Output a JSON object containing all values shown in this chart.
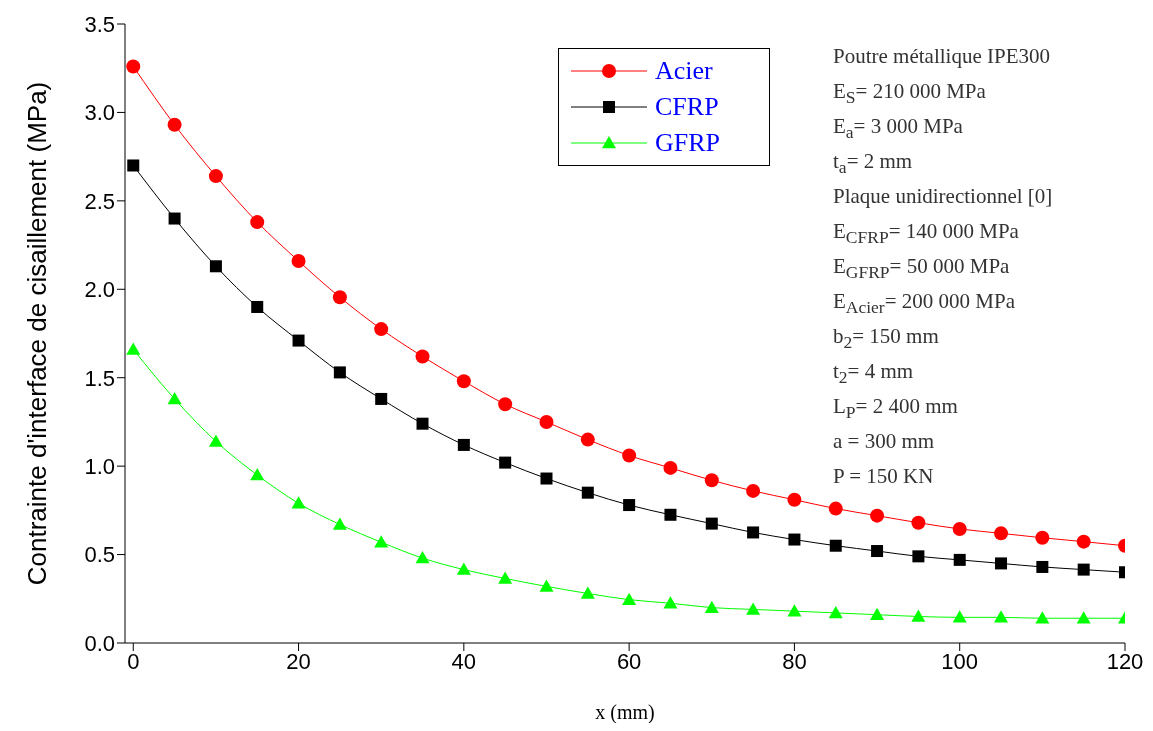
{
  "chart_data": {
    "type": "line",
    "xlabel": "x (mm)",
    "ylabel": "Contrainte d'interface de cisaillement (MPa)",
    "x": [
      0,
      5,
      10,
      15,
      20,
      25,
      30,
      35,
      40,
      45,
      50,
      55,
      60,
      65,
      70,
      75,
      80,
      85,
      90,
      95,
      100,
      105,
      110,
      115,
      120
    ],
    "series": [
      {
        "name": "Acier",
        "color": "#ff0000",
        "marker": "circle",
        "values": [
          3.26,
          2.93,
          2.64,
          2.38,
          2.16,
          1.955,
          1.775,
          1.62,
          1.48,
          1.35,
          1.25,
          1.15,
          1.06,
          0.99,
          0.92,
          0.86,
          0.81,
          0.76,
          0.72,
          0.68,
          0.645,
          0.62,
          0.595,
          0.573,
          0.55
        ]
      },
      {
        "name": "CFRP",
        "color": "#000000",
        "marker": "square",
        "values": [
          2.7,
          2.4,
          2.13,
          1.9,
          1.71,
          1.53,
          1.38,
          1.24,
          1.12,
          1.02,
          0.93,
          0.85,
          0.78,
          0.725,
          0.675,
          0.625,
          0.585,
          0.55,
          0.52,
          0.49,
          0.47,
          0.45,
          0.43,
          0.415,
          0.4
        ]
      },
      {
        "name": "GFRP",
        "color": "#00ff00",
        "marker": "triangle",
        "values": [
          1.66,
          1.38,
          1.14,
          0.95,
          0.79,
          0.67,
          0.57,
          0.48,
          0.415,
          0.365,
          0.32,
          0.28,
          0.245,
          0.225,
          0.2,
          0.19,
          0.18,
          0.17,
          0.16,
          0.15,
          0.145,
          0.145,
          0.14,
          0.14,
          0.14
        ]
      }
    ],
    "xlim": [
      -1,
      120
    ],
    "xticks": [
      0,
      20,
      40,
      60,
      80,
      100,
      120
    ],
    "ylim": [
      0,
      3.5
    ],
    "yticks": [
      {
        "value": 0,
        "label": "0.0"
      },
      {
        "value": 0.5,
        "label": "0.5"
      },
      {
        "value": 1,
        "label": "1.0"
      },
      {
        "value": 1.5,
        "label": "1.5"
      },
      {
        "value": 2,
        "label": "2.0"
      },
      {
        "value": 2.5,
        "label": "2.5"
      },
      {
        "value": 3,
        "label": "3.0"
      },
      {
        "value": 3.5,
        "label": "3.5"
      }
    ],
    "grid": false,
    "legend": "top",
    "line_style": "solid",
    "annotations": [
      "Poutre métallique IPE300",
      "E$_{S}$= 210 000 MPa",
      "E$_{a}$= 3 000 MPa",
      "t$_{a}$= 2 mm",
      "Plaque unidirectionnel [0]",
      "E$_{CFRP}$= 140 000 MPa",
      "E$_{GFRP}$= 50 000 MPa",
      "E$_{Acier}$= 200 000 MPa",
      "b$_{2}$= 150 mm",
      "t$_{2}$= 4 mm",
      "L$_{P}$= 2 400 mm",
      "a = 300 mm",
      "P = 150 KN"
    ]
  }
}
